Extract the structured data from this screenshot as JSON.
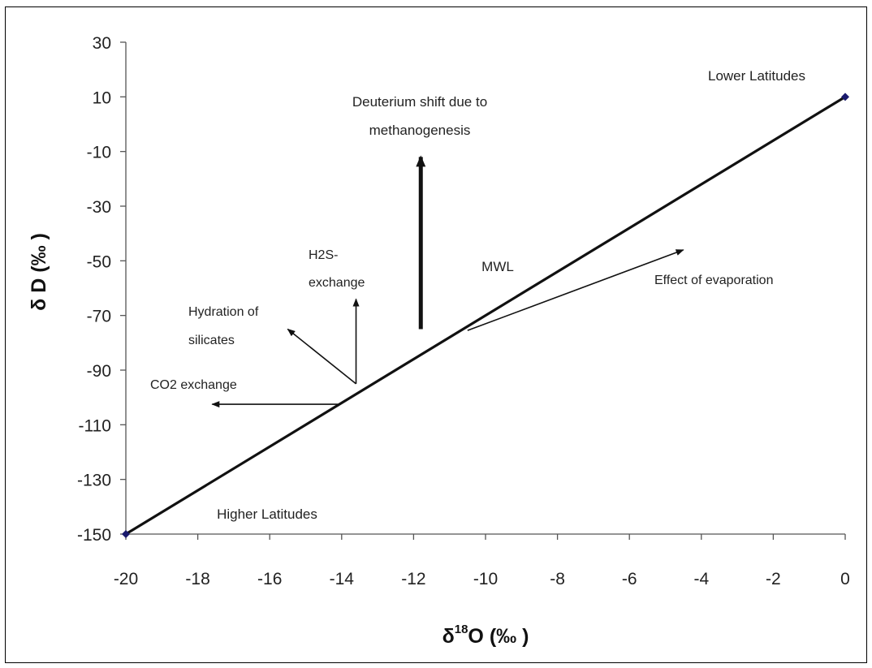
{
  "chart_data": {
    "type": "line",
    "xlabel": {
      "prefix": "δ",
      "sup": "18",
      "main": "O (‰ )"
    },
    "ylabel": "δ D (‰ )",
    "xlim": [
      -20,
      0
    ],
    "ylim": [
      -150,
      30
    ],
    "x_ticks": [
      -20,
      -18,
      -16,
      -14,
      -12,
      -10,
      -8,
      -6,
      -4,
      -2,
      0
    ],
    "y_ticks": [
      30,
      10,
      -10,
      -30,
      -50,
      -70,
      -90,
      -110,
      -130,
      -150
    ],
    "grid": false,
    "series": [
      {
        "name": "MWL",
        "x": [
          -20,
          0
        ],
        "y": [
          -150,
          10
        ]
      }
    ],
    "annotations": {
      "lower_latitudes": "Lower Latitudes",
      "higher_latitudes": "Higher Latitudes",
      "mwl": "MWL",
      "deuterium_shift": [
        "Deuterium shift due to",
        "methanogenesis"
      ],
      "h2s_exchange": [
        "H2S-",
        "exchange"
      ],
      "hydration_silicates": [
        "Hydration of",
        "silicates"
      ],
      "co2_exchange": "CO2 exchange",
      "evaporation": "Effect of evaporation"
    },
    "arrows": [
      {
        "label": "CO2 exchange",
        "from": [
          -14.1,
          -102.5
        ],
        "to": [
          -17.6,
          -102.5
        ]
      },
      {
        "label": "Hydration of silicates",
        "from": [
          -13.6,
          -95
        ],
        "to": [
          -15.5,
          -75
        ]
      },
      {
        "label": "H2S-exchange",
        "from": [
          -13.6,
          -95
        ],
        "to": [
          -13.6,
          -64
        ]
      },
      {
        "label": "Deuterium shift due to methanogenesis",
        "from": [
          -11.8,
          -75
        ],
        "to": [
          -11.8,
          -12
        ]
      },
      {
        "label": "Effect of evaporation",
        "from": [
          -10.5,
          -75.5
        ],
        "to": [
          -4.5,
          -46
        ]
      }
    ]
  }
}
